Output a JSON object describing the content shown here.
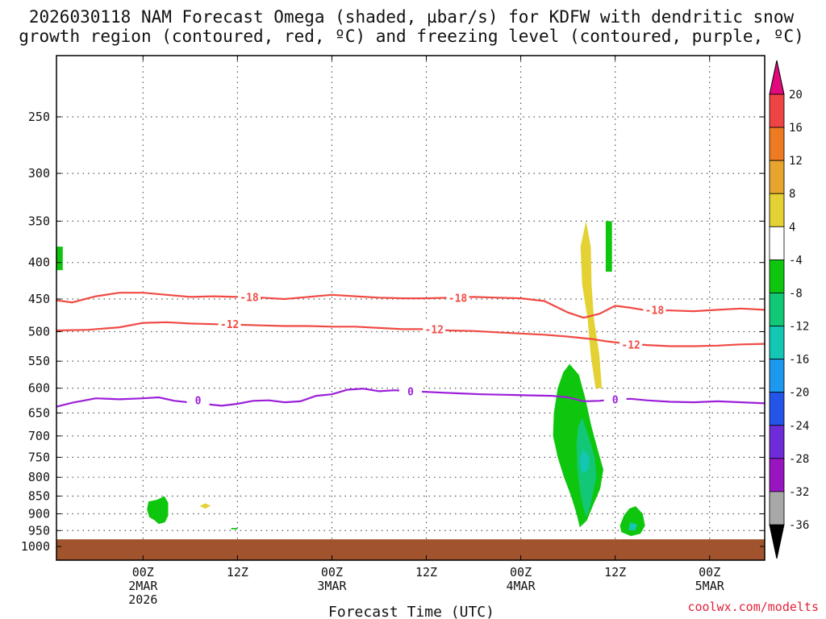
{
  "chart_data": {
    "type": "time-height-contour",
    "title_line1": "2026030118 NAM Forecast Omega (shaded, µbar/s) for KDFW with dendritic snow",
    "title_line2": "growth region (contoured, red, ºC) and freezing level (contoured, purple, ºC)",
    "xlabel": "Forecast Time (UTC)",
    "credit": "coolwx.com/modelts",
    "x_hours_range": [
      -5,
      85
    ],
    "y_pressure_range": [
      1000,
      200
    ],
    "y_ticks": [
      250,
      300,
      350,
      400,
      450,
      500,
      550,
      600,
      650,
      700,
      750,
      800,
      850,
      900,
      950,
      1000
    ],
    "x_ticks": [
      {
        "hour": 6,
        "lines": [
          "00Z",
          "2MAR",
          "2026"
        ]
      },
      {
        "hour": 18,
        "lines": [
          "12Z"
        ]
      },
      {
        "hour": 30,
        "lines": [
          "00Z",
          "3MAR"
        ]
      },
      {
        "hour": 42,
        "lines": [
          "12Z"
        ]
      },
      {
        "hour": 54,
        "lines": [
          "00Z",
          "4MAR"
        ]
      },
      {
        "hour": 66,
        "lines": [
          "12Z"
        ]
      },
      {
        "hour": 78,
        "lines": [
          "00Z",
          "5MAR"
        ]
      }
    ],
    "colorbar": {
      "labels": [
        "20",
        "16",
        "12",
        "8",
        "4",
        "-4",
        "-8",
        "-12",
        "-16",
        "-20",
        "-24",
        "-28",
        "-32",
        "-36"
      ],
      "colors": [
        "#ee4444",
        "#ee7b22",
        "#e7a52e",
        "#e4d133",
        "#ffffff",
        "#0fc60f",
        "#12c877",
        "#14c6b4",
        "#1c98ee",
        "#2255e8",
        "#6d2bd9",
        "#9a15c2",
        "#a8a8a8"
      ],
      "top_arrow_color": "#e3087d",
      "bottom_arrow_color": "#000000"
    },
    "contours": [
      {
        "name": "-18C",
        "label": "-18",
        "color": "#f04a43",
        "points": [
          [
            -5,
            452
          ],
          [
            -3,
            455
          ],
          [
            0,
            446
          ],
          [
            3,
            441
          ],
          [
            6,
            441
          ],
          [
            9,
            444
          ],
          [
            12,
            447
          ],
          [
            15,
            446
          ],
          [
            18,
            447
          ],
          [
            21,
            448
          ],
          [
            24,
            450
          ],
          [
            27,
            447
          ],
          [
            30,
            444
          ],
          [
            33,
            446
          ],
          [
            36,
            448
          ],
          [
            39,
            449
          ],
          [
            42,
            449
          ],
          [
            45,
            448
          ],
          [
            48,
            447
          ],
          [
            51,
            448
          ],
          [
            54,
            449
          ],
          [
            57,
            453
          ],
          [
            60,
            470
          ],
          [
            62,
            478
          ],
          [
            64,
            472
          ],
          [
            66,
            460
          ],
          [
            68,
            463
          ],
          [
            70,
            467
          ],
          [
            73,
            467
          ],
          [
            76,
            468
          ],
          [
            79,
            466
          ],
          [
            82,
            464
          ],
          [
            85,
            466
          ]
        ],
        "label_points": [
          [
            19.5,
            447
          ],
          [
            46,
            448
          ],
          [
            71,
            466
          ]
        ]
      },
      {
        "name": "-12C",
        "label": "-12",
        "color": "#f04a43",
        "points": [
          [
            -5,
            498
          ],
          [
            -1,
            497
          ],
          [
            3,
            493
          ],
          [
            6,
            486
          ],
          [
            9,
            485
          ],
          [
            12,
            487
          ],
          [
            15,
            488
          ],
          [
            18,
            489
          ],
          [
            21,
            490
          ],
          [
            24,
            491
          ],
          [
            27,
            491
          ],
          [
            30,
            492
          ],
          [
            33,
            492
          ],
          [
            36,
            494
          ],
          [
            39,
            496
          ],
          [
            42,
            496
          ],
          [
            45,
            498
          ],
          [
            48,
            499
          ],
          [
            51,
            501
          ],
          [
            54,
            503
          ],
          [
            57,
            505
          ],
          [
            60,
            508
          ],
          [
            63,
            512
          ],
          [
            65,
            516
          ],
          [
            67,
            519
          ],
          [
            70,
            522
          ],
          [
            73,
            524
          ],
          [
            76,
            524
          ],
          [
            79,
            523
          ],
          [
            82,
            521
          ],
          [
            85,
            520
          ]
        ],
        "label_points": [
          [
            17,
            488
          ],
          [
            43,
            496
          ],
          [
            68,
            521
          ]
        ]
      },
      {
        "name": "0C",
        "label": "0",
        "color": "#9b1ed9",
        "points": [
          [
            -5,
            637
          ],
          [
            -3,
            629
          ],
          [
            0,
            620
          ],
          [
            3,
            622
          ],
          [
            6,
            620
          ],
          [
            8,
            618
          ],
          [
            10,
            625
          ],
          [
            13,
            630
          ],
          [
            16,
            635
          ],
          [
            18,
            631
          ],
          [
            20,
            625
          ],
          [
            22,
            624
          ],
          [
            24,
            628
          ],
          [
            26,
            626
          ],
          [
            28,
            615
          ],
          [
            30,
            612
          ],
          [
            32,
            603
          ],
          [
            34,
            601
          ],
          [
            36,
            606
          ],
          [
            38,
            604
          ],
          [
            40,
            606
          ],
          [
            43,
            608
          ],
          [
            46,
            610
          ],
          [
            49,
            612
          ],
          [
            52,
            613
          ],
          [
            55,
            614
          ],
          [
            58,
            615
          ],
          [
            60,
            618
          ],
          [
            62,
            626
          ],
          [
            64,
            625
          ],
          [
            66,
            622
          ],
          [
            68,
            621
          ],
          [
            70,
            624
          ],
          [
            73,
            627
          ],
          [
            76,
            628
          ],
          [
            79,
            626
          ],
          [
            82,
            628
          ],
          [
            85,
            630
          ]
        ],
        "label_points": [
          [
            13,
            624
          ],
          [
            40,
            606
          ],
          [
            66,
            622
          ]
        ]
      }
    ],
    "shaded_regions": [
      {
        "name": "omega-green-left-edge",
        "value": -6,
        "color": "#0fc60f",
        "points": [
          [
            -5,
            380
          ],
          [
            -4.2,
            380
          ],
          [
            -4.2,
            410
          ],
          [
            -5,
            410
          ]
        ]
      },
      {
        "name": "omega-green-upper",
        "value": -6,
        "color": "#0fc60f",
        "points": [
          [
            64.8,
            350
          ],
          [
            65.6,
            350
          ],
          [
            65.6,
            412
          ],
          [
            64.8,
            412
          ]
        ]
      },
      {
        "name": "omega-yellow-plume",
        "value": 6,
        "color": "#e4d133",
        "points": [
          [
            62.3,
            350
          ],
          [
            62.9,
            380
          ],
          [
            63.0,
            430
          ],
          [
            63.3,
            480
          ],
          [
            64.0,
            540
          ],
          [
            64.3,
            600
          ],
          [
            63.5,
            600
          ],
          [
            62.9,
            540
          ],
          [
            62.5,
            480
          ],
          [
            61.8,
            430
          ],
          [
            61.6,
            380
          ]
        ]
      },
      {
        "name": "omega-green-main",
        "value": -6,
        "color": "#0fc60f",
        "points": [
          [
            60.2,
            555
          ],
          [
            61.4,
            575
          ],
          [
            62.2,
            620
          ],
          [
            63.0,
            680
          ],
          [
            63.9,
            740
          ],
          [
            64.5,
            780
          ],
          [
            64.1,
            830
          ],
          [
            63.2,
            875
          ],
          [
            62.4,
            920
          ],
          [
            61.5,
            940
          ],
          [
            61.1,
            900
          ],
          [
            60.4,
            850
          ],
          [
            59.5,
            800
          ],
          [
            58.7,
            750
          ],
          [
            58.1,
            700
          ],
          [
            58.2,
            650
          ],
          [
            58.7,
            600
          ],
          [
            59.4,
            570
          ]
        ]
      },
      {
        "name": "omega-teal-main",
        "value": -10,
        "color": "#12c877",
        "points": [
          [
            61.8,
            660
          ],
          [
            62.6,
            700
          ],
          [
            63.4,
            750
          ],
          [
            63.6,
            800
          ],
          [
            63.2,
            840
          ],
          [
            62.8,
            880
          ],
          [
            62.3,
            910
          ],
          [
            61.9,
            875
          ],
          [
            61.5,
            830
          ],
          [
            61.2,
            780
          ],
          [
            61.1,
            720
          ],
          [
            61.3,
            680
          ]
        ]
      },
      {
        "name": "omega-cyan-main",
        "value": -14,
        "color": "#14c6b4",
        "points": [
          [
            61.9,
            730
          ],
          [
            62.7,
            750
          ],
          [
            62.6,
            780
          ],
          [
            61.8,
            790
          ],
          [
            61.5,
            760
          ]
        ]
      },
      {
        "name": "omega-green-early",
        "value": -6,
        "color": "#0fc60f",
        "points": [
          [
            6.7,
            865
          ],
          [
            7.8,
            860
          ],
          [
            8.7,
            850
          ],
          [
            9.2,
            868
          ],
          [
            9.2,
            905
          ],
          [
            8.8,
            925
          ],
          [
            8.0,
            930
          ],
          [
            7.4,
            918
          ],
          [
            6.8,
            910
          ],
          [
            6.5,
            888
          ]
        ]
      },
      {
        "name": "omega-yellow-small",
        "value": 5,
        "color": "#e4d133",
        "points": [
          [
            13.2,
            878
          ],
          [
            13.9,
            870
          ],
          [
            14.6,
            877
          ],
          [
            13.9,
            885
          ]
        ]
      },
      {
        "name": "omega-green-tiny",
        "value": -5,
        "color": "#0fc60f",
        "points": [
          [
            17.2,
            942
          ],
          [
            18.0,
            942
          ],
          [
            18.0,
            946
          ],
          [
            17.2,
            946
          ]
        ]
      },
      {
        "name": "omega-green-right",
        "value": -6,
        "color": "#0fc60f",
        "points": [
          [
            67.8,
            885
          ],
          [
            68.6,
            878
          ],
          [
            69.5,
            900
          ],
          [
            69.8,
            935
          ],
          [
            69.2,
            960
          ],
          [
            68.0,
            967
          ],
          [
            66.8,
            955
          ],
          [
            66.6,
            935
          ],
          [
            67.1,
            905
          ]
        ]
      },
      {
        "name": "omega-teal-right",
        "value": -10,
        "color": "#14c6b4",
        "points": [
          [
            67.9,
            925
          ],
          [
            68.8,
            932
          ],
          [
            68.5,
            950
          ],
          [
            67.7,
            948
          ]
        ]
      }
    ],
    "surface": {
      "name": "below-ground",
      "color": "#a0532d"
    }
  }
}
